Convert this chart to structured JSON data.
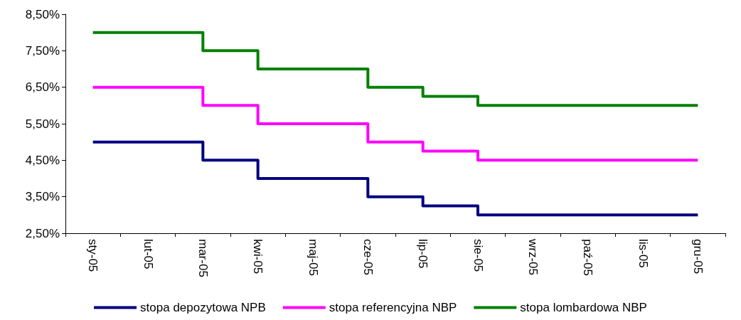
{
  "chart_data": {
    "type": "step",
    "categories": [
      "sty-05",
      "lut-05",
      "mar-05",
      "kwi-05",
      "maj-05",
      "cze-05",
      "lip-05",
      "sie-05",
      "wrz-05",
      "paź-05",
      "lis-05",
      "gru-05"
    ],
    "series": [
      {
        "name": "stopa depozytowa NPB",
        "color": "#000080",
        "values": [
          5,
          5,
          4.5,
          4,
          4,
          3.5,
          3.25,
          3,
          3,
          3,
          3,
          3
        ]
      },
      {
        "name": "stopa referencyjna NBP",
        "color": "#ff00ff",
        "values": [
          6.5,
          6.5,
          6,
          5.5,
          5.5,
          5,
          4.75,
          4.5,
          4.5,
          4.5,
          4.5,
          4.5
        ]
      },
      {
        "name": "stopa lombardowa NBP",
        "color": "#008000",
        "values": [
          8,
          8,
          7.5,
          7,
          7,
          6.5,
          6.25,
          6,
          6,
          6,
          6,
          6
        ]
      }
    ],
    "ylim": [
      2.5,
      8.5
    ],
    "yticks": [
      {
        "value": 2.5,
        "label": "2,50%"
      },
      {
        "value": 3.5,
        "label": "3,50%"
      },
      {
        "value": 4.5,
        "label": "4,50%"
      },
      {
        "value": 5.5,
        "label": "5,50%"
      },
      {
        "value": 6.5,
        "label": "6,50%"
      },
      {
        "value": 7.5,
        "label": "7,50%"
      },
      {
        "value": 8.5,
        "label": "8,50%"
      }
    ],
    "grid": false,
    "legend": "bottom",
    "marker": "none",
    "line_style": "solid"
  }
}
